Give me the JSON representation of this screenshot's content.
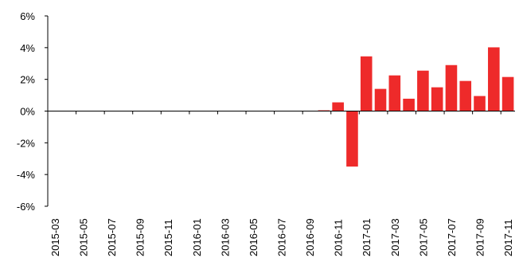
{
  "chart_data": {
    "type": "bar",
    "title": "",
    "xlabel": "",
    "ylabel": "",
    "ylim": [
      -0.06,
      0.06
    ],
    "yticks": [
      -0.06,
      -0.04,
      -0.02,
      0,
      0.02,
      0.04,
      0.06
    ],
    "ytick_labels": [
      "-6%",
      "-4%",
      "-2%",
      "0%",
      "2%",
      "4%",
      "6%"
    ],
    "grid": false,
    "bar_color": "#ee2a2a",
    "categories": [
      "2015-03",
      "2015-04",
      "2015-05",
      "2015-06",
      "2015-07",
      "2015-08",
      "2015-09",
      "2015-10",
      "2015-11",
      "2015-12",
      "2016-01",
      "2016-02",
      "2016-03",
      "2016-04",
      "2016-05",
      "2016-06",
      "2016-07",
      "2016-08",
      "2016-09",
      "2016-10",
      "2016-11",
      "2016-12",
      "2017-01",
      "2017-02",
      "2017-03",
      "2017-04",
      "2017-05",
      "2017-06",
      "2017-07",
      "2017-08",
      "2017-09",
      "2017-10",
      "2017-11"
    ],
    "xtick_labels": [
      "2015-03",
      "2015-05",
      "2015-07",
      "2015-09",
      "2015-11",
      "2016-01",
      "2016-03",
      "2016-05",
      "2016-07",
      "2016-09",
      "2016-11",
      "2017-01",
      "2017-03",
      "2017-05",
      "2017-07",
      "2017-09",
      "2017-11"
    ],
    "values": [
      0,
      0,
      0,
      0,
      0,
      0,
      0,
      0,
      0,
      0,
      0,
      0,
      0,
      0,
      0,
      0,
      0,
      0,
      0,
      0.0005,
      0.0055,
      -0.035,
      0.0345,
      0.014,
      0.0225,
      0.0078,
      0.0255,
      0.015,
      0.029,
      0.019,
      0.0095,
      0.0402,
      0.0215
    ]
  }
}
